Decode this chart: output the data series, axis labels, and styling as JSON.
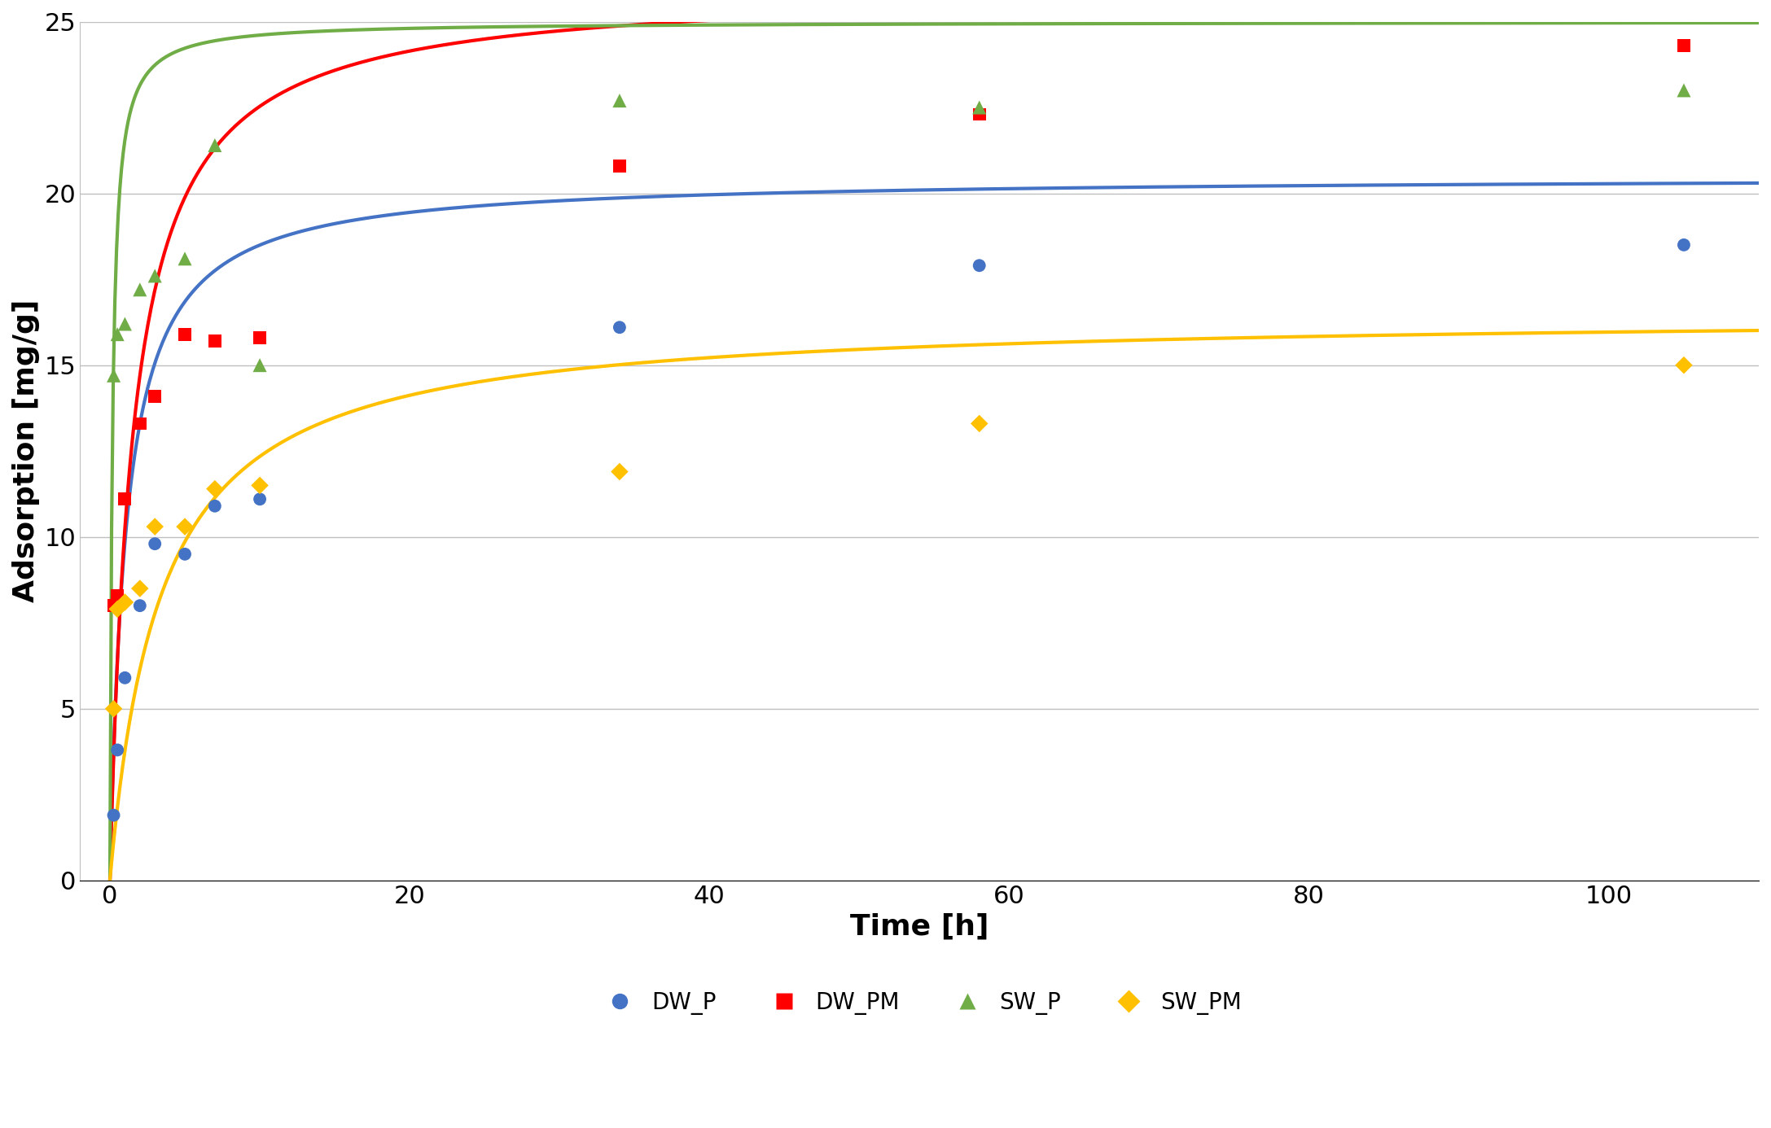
{
  "title": "",
  "xlabel": "Time [h]",
  "ylabel": "Adsorption [mg/g]",
  "xlim": [
    -2,
    110
  ],
  "ylim": [
    0,
    25
  ],
  "yticks": [
    0,
    5,
    10,
    15,
    20,
    25
  ],
  "xticks": [
    0,
    20,
    40,
    60,
    80,
    100
  ],
  "series": {
    "DW_P": {
      "scatter_x": [
        0.25,
        0.5,
        1,
        2,
        3,
        5,
        7,
        10,
        34,
        58,
        105
      ],
      "scatter_y": [
        1.9,
        3.8,
        5.9,
        8.0,
        9.8,
        9.5,
        10.9,
        11.1,
        16.1,
        17.9,
        18.5
      ],
      "color": "#4472C4",
      "marker": "o",
      "markersize": 130,
      "curve_params": {
        "qe": 20.5,
        "k2": 0.045
      },
      "label": "DW_P"
    },
    "DW_PM": {
      "scatter_x": [
        0.25,
        0.5,
        1,
        2,
        3,
        5,
        7,
        10,
        34,
        58,
        105
      ],
      "scatter_y": [
        8.0,
        8.3,
        11.1,
        13.3,
        14.1,
        15.9,
        15.7,
        15.8,
        20.8,
        22.3,
        24.3
      ],
      "color": "#FF0000",
      "marker": "s",
      "markersize": 130,
      "curve_params": {
        "qe": 26.0,
        "k2": 0.025
      },
      "label": "DW_PM"
    },
    "SW_P": {
      "scatter_x": [
        0.25,
        0.5,
        1,
        2,
        3,
        5,
        7,
        10,
        34,
        58,
        105
      ],
      "scatter_y": [
        14.7,
        15.9,
        16.2,
        17.2,
        17.6,
        18.1,
        21.4,
        15.0,
        22.7,
        22.5,
        23.0
      ],
      "color": "#70AD47",
      "marker": "^",
      "markersize": 150,
      "curve_params": {
        "qe": 25.0,
        "k2": 0.25
      },
      "label": "SW_P"
    },
    "SW_PM": {
      "scatter_x": [
        0.25,
        0.5,
        1,
        2,
        3,
        5,
        7,
        10,
        34,
        58,
        105
      ],
      "scatter_y": [
        5.0,
        7.9,
        8.1,
        8.5,
        10.3,
        10.3,
        11.4,
        11.5,
        11.9,
        13.3,
        15.0
      ],
      "color": "#FFC000",
      "marker": "D",
      "markersize": 120,
      "curve_params": {
        "qe": 16.5,
        "k2": 0.018
      },
      "label": "SW_PM"
    }
  },
  "legend_order": [
    "DW_P",
    "DW_PM",
    "SW_P",
    "SW_PM"
  ],
  "background_color": "#FFFFFF",
  "grid_color": "#BFBFBF",
  "axis_label_fontsize": 26,
  "tick_fontsize": 22,
  "legend_fontsize": 20,
  "linewidth": 3.0
}
